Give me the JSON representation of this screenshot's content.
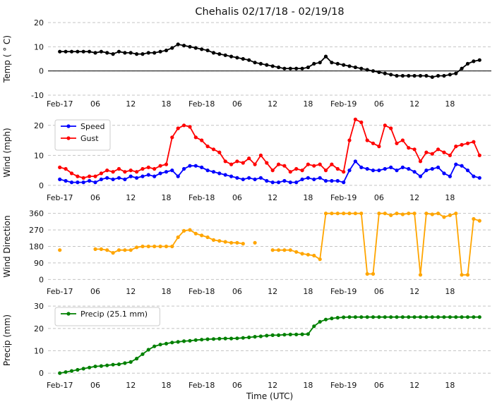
{
  "title": "Chehalis 02/17/18 - 02/19/18",
  "x": {
    "xlabel": "Time (UTC)",
    "ticks": [
      0,
      6,
      12,
      18,
      24,
      30,
      36,
      42,
      48,
      54,
      60,
      66
    ],
    "tick_labels": [
      "Feb-17",
      "06",
      "12",
      "18",
      "Feb-18",
      "06",
      "12",
      "18",
      "Feb-19",
      "06",
      "12",
      "18"
    ],
    "xlim": [
      -2,
      73
    ]
  },
  "chart_data": [
    {
      "type": "line",
      "id": "temp",
      "ylabel": "Temp ( ° C)",
      "ylim": [
        -10,
        20
      ],
      "yticks": [
        -10,
        0,
        10,
        20
      ],
      "zero_line": true,
      "legend": false,
      "series": [
        {
          "name": "Temp",
          "color": "#000000",
          "values": [
            8,
            8,
            8,
            8,
            8,
            8,
            7.5,
            8,
            7.5,
            7,
            8,
            7.5,
            7.5,
            7,
            7,
            7.5,
            7.5,
            8,
            8.5,
            9.5,
            11,
            10.5,
            10,
            9.5,
            9,
            8.5,
            7.5,
            7,
            6.5,
            6,
            5.5,
            5,
            4.5,
            3.5,
            3,
            2.5,
            2,
            1.5,
            1,
            1,
            1,
            1,
            1.5,
            3,
            3.5,
            6,
            3.5,
            3,
            2.5,
            2,
            1.5,
            1,
            0.5,
            0,
            -0.5,
            -1,
            -1.5,
            -2,
            -2,
            -2,
            -2,
            -2,
            -2,
            -2.5,
            -2,
            -2,
            -1.5,
            -1,
            1,
            3,
            4,
            4.5
          ]
        }
      ]
    },
    {
      "type": "line",
      "id": "wind",
      "ylabel": "Wind (mph)",
      "ylim": [
        -1.2,
        23
      ],
      "yticks": [
        0,
        10,
        20
      ],
      "zero_line": false,
      "legend": true,
      "series": [
        {
          "name": "Speed",
          "color": "#0000ff",
          "values": [
            2,
            1.5,
            1,
            1,
            1,
            1.5,
            1,
            2,
            2.5,
            2,
            2.5,
            2,
            3,
            2.5,
            3,
            3.5,
            3,
            4,
            4.5,
            5,
            3,
            5.5,
            6.5,
            6.5,
            6,
            5,
            4.5,
            4,
            3.5,
            3,
            2.5,
            2,
            2.5,
            2,
            2.5,
            1.5,
            1,
            1,
            1.5,
            1,
            1,
            2,
            2.5,
            2,
            2.5,
            1.5,
            1.5,
            1.5,
            1,
            5,
            8,
            6,
            5.5,
            5,
            5,
            5.5,
            6,
            5,
            6,
            5.5,
            4.5,
            3,
            5,
            5.5,
            6,
            4,
            3,
            7,
            6.5,
            5,
            3,
            2.5
          ]
        },
        {
          "name": "Gust",
          "color": "#ff0000",
          "values": [
            6,
            5.5,
            4,
            3,
            2.5,
            3,
            3,
            4,
            5,
            4.5,
            5.5,
            4.5,
            5,
            4.5,
            5.5,
            6,
            5.5,
            6.5,
            7,
            16,
            19,
            20,
            19.5,
            16,
            15,
            13,
            12,
            11,
            8,
            7,
            8,
            7.5,
            9,
            7,
            10,
            7.5,
            5,
            7,
            6.5,
            4.5,
            5.5,
            5,
            7,
            6.5,
            7,
            5,
            7,
            5.5,
            4.5,
            15,
            22,
            21,
            15,
            14,
            13,
            20,
            19,
            14,
            15,
            12.5,
            12,
            8,
            11,
            10.5,
            12,
            11,
            10,
            13,
            13.5,
            14,
            14.5,
            10
          ]
        }
      ]
    },
    {
      "type": "line",
      "id": "wind-direction",
      "ylabel": "Wind Direction",
      "ylim": [
        -18,
        378
      ],
      "yticks": [
        0,
        90,
        180,
        270,
        360
      ],
      "zero_line": false,
      "legend": false,
      "series": [
        {
          "name": "Direction",
          "color": "#ffa500",
          "values": [
            160,
            null,
            null,
            null,
            null,
            null,
            165,
            165,
            160,
            145,
            160,
            160,
            160,
            175,
            180,
            180,
            180,
            180,
            180,
            180,
            230,
            265,
            270,
            250,
            240,
            230,
            215,
            210,
            205,
            200,
            200,
            195,
            null,
            200,
            null,
            null,
            160,
            160,
            160,
            160,
            150,
            140,
            135,
            130,
            110,
            360,
            360,
            360,
            360,
            360,
            360,
            360,
            30,
            30,
            360,
            360,
            350,
            360,
            355,
            360,
            360,
            25,
            360,
            355,
            360,
            340,
            350,
            360,
            25,
            25,
            330,
            320
          ]
        }
      ]
    },
    {
      "type": "line",
      "id": "precip",
      "ylabel": "Precip (mm)",
      "ylim": [
        -1.5,
        31
      ],
      "yticks": [
        0,
        10,
        20,
        30
      ],
      "zero_line": false,
      "legend": true,
      "series": [
        {
          "name": "Precip (25.1 mm)",
          "color": "#008000",
          "values": [
            0,
            0.5,
            1,
            1.5,
            2,
            2.5,
            3,
            3.2,
            3.5,
            3.8,
            4,
            4.5,
            5,
            6.5,
            8.5,
            10.5,
            12,
            12.8,
            13.2,
            13.7,
            14,
            14.3,
            14.5,
            14.8,
            15,
            15.2,
            15.3,
            15.4,
            15.5,
            15.5,
            15.6,
            15.8,
            16,
            16.3,
            16.5,
            16.8,
            17,
            17,
            17.2,
            17.3,
            17.3,
            17.4,
            17.5,
            21,
            23,
            24,
            24.5,
            24.8,
            25,
            25.1,
            25.1,
            25.1,
            25.1,
            25.1,
            25.1,
            25.1,
            25.1,
            25.1,
            25.1,
            25.1,
            25.1,
            25.1,
            25.1,
            25.1,
            25.1,
            25.1,
            25.1,
            25.1,
            25.1,
            25.1,
            25.1,
            25.1
          ]
        }
      ]
    }
  ],
  "style": {
    "grid_color": "#c4c4c4",
    "text_color": "#111111",
    "legend_border": "#cccccc",
    "background": "#ffffff"
  }
}
